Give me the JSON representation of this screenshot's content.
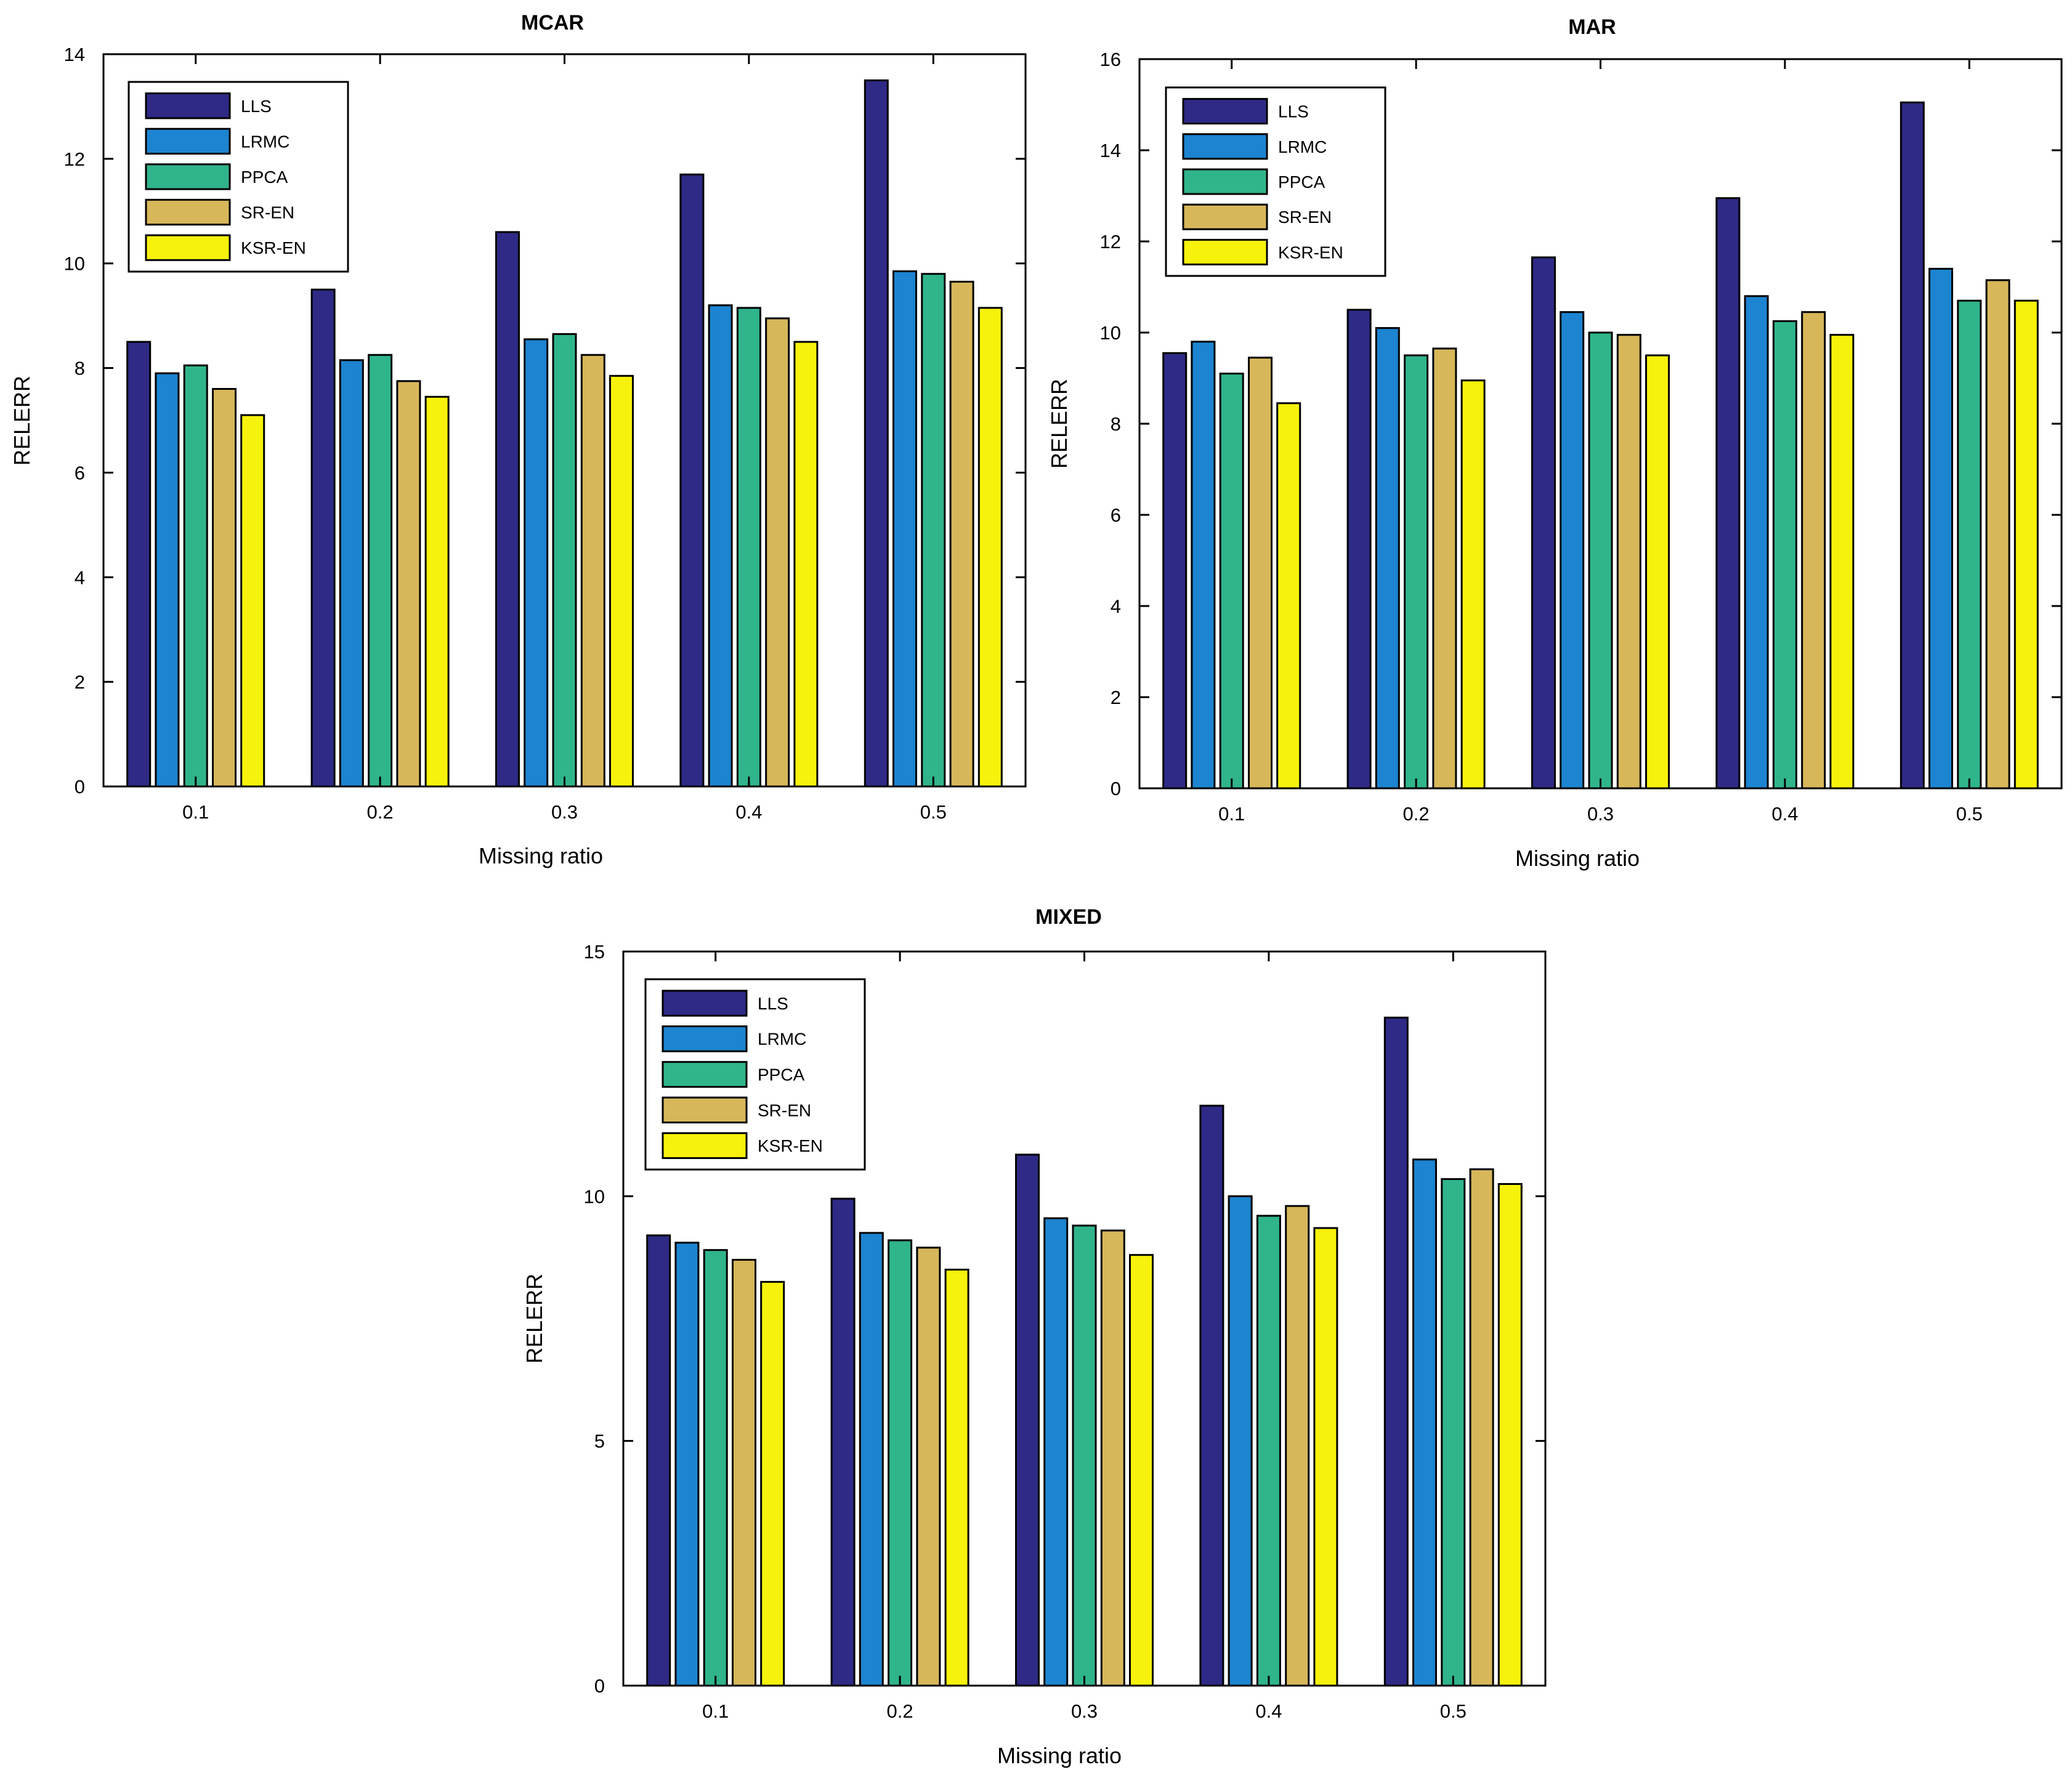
{
  "chart_data": [
    {
      "type": "bar",
      "title": "MCAR",
      "xlabel": "Missing ratio",
      "ylabel": "RELERR",
      "ylim": [
        0,
        14
      ],
      "yticks": [
        0,
        2,
        4,
        6,
        8,
        10,
        12,
        14
      ],
      "categories": [
        "0.1",
        "0.2",
        "0.3",
        "0.4",
        "0.5"
      ],
      "legend_position": "top-left",
      "series": [
        {
          "name": "LLS",
          "values": [
            8.5,
            9.5,
            10.6,
            11.7,
            13.5
          ]
        },
        {
          "name": "LRMC",
          "values": [
            7.9,
            8.15,
            8.55,
            9.2,
            9.85
          ]
        },
        {
          "name": "PPCA",
          "values": [
            8.05,
            8.25,
            8.65,
            9.15,
            9.8
          ]
        },
        {
          "name": "SR-EN",
          "values": [
            7.6,
            7.75,
            8.25,
            8.95,
            9.65
          ]
        },
        {
          "name": "KSR-EN",
          "values": [
            7.1,
            7.45,
            7.85,
            8.5,
            9.15
          ]
        }
      ]
    },
    {
      "type": "bar",
      "title": "MAR",
      "xlabel": "Missing ratio",
      "ylabel": "RELERR",
      "ylim": [
        0,
        16
      ],
      "yticks": [
        0,
        2,
        4,
        6,
        8,
        10,
        12,
        14,
        16
      ],
      "categories": [
        "0.1",
        "0.2",
        "0.3",
        "0.4",
        "0.5"
      ],
      "legend_position": "top-left",
      "series": [
        {
          "name": "LLS",
          "values": [
            9.55,
            10.5,
            11.65,
            12.95,
            15.05
          ]
        },
        {
          "name": "LRMC",
          "values": [
            9.8,
            10.1,
            10.45,
            10.8,
            11.4
          ]
        },
        {
          "name": "PPCA",
          "values": [
            9.1,
            9.5,
            10.0,
            10.25,
            10.7
          ]
        },
        {
          "name": "SR-EN",
          "values": [
            9.45,
            9.65,
            9.95,
            10.45,
            11.15
          ]
        },
        {
          "name": "KSR-EN",
          "values": [
            8.45,
            8.95,
            9.5,
            9.95,
            10.7
          ]
        }
      ]
    },
    {
      "type": "bar",
      "title": "MIXED",
      "xlabel": "Missing ratio",
      "ylabel": "RELERR",
      "ylim": [
        0,
        15
      ],
      "yticks": [
        0,
        5,
        10,
        15
      ],
      "categories": [
        "0.1",
        "0.2",
        "0.3",
        "0.4",
        "0.5"
      ],
      "legend_position": "top-left",
      "series": [
        {
          "name": "LLS",
          "values": [
            9.2,
            9.95,
            10.85,
            11.85,
            13.65
          ]
        },
        {
          "name": "LRMC",
          "values": [
            9.05,
            9.25,
            9.55,
            10.0,
            10.75
          ]
        },
        {
          "name": "PPCA",
          "values": [
            8.9,
            9.1,
            9.4,
            9.6,
            10.35
          ]
        },
        {
          "name": "SR-EN",
          "values": [
            8.7,
            8.95,
            9.3,
            9.8,
            10.55
          ]
        },
        {
          "name": "KSR-EN",
          "values": [
            8.25,
            8.5,
            8.8,
            9.35,
            10.25
          ]
        }
      ]
    }
  ],
  "colors": {
    "LLS": "#2e2a86",
    "LRMC": "#1c84d0",
    "PPCA": "#30b48c",
    "SR-EN": "#d7b75a",
    "KSR-EN": "#f6f20c"
  }
}
